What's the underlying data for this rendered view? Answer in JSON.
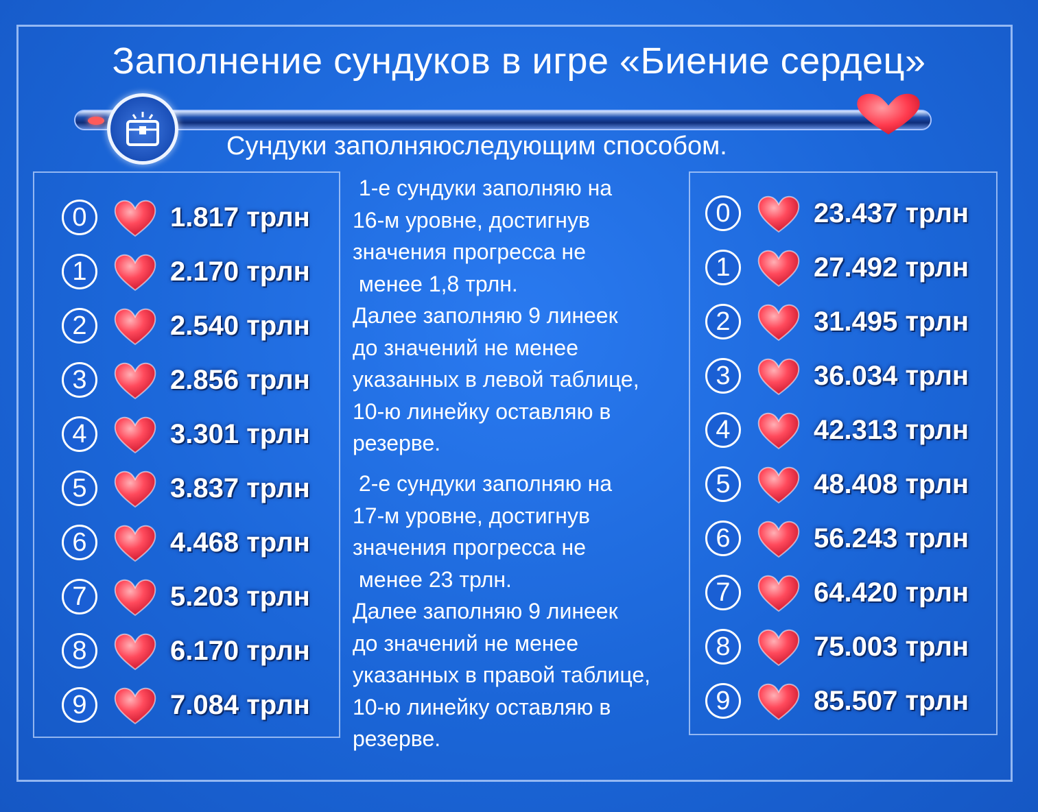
{
  "title": "Заполнение сундуков в игре «Биение сердец»",
  "subtitle": "Сундуки заполняюследующим способом.",
  "left_table": [
    {
      "index": "0",
      "value": "1.817 трлн"
    },
    {
      "index": "1",
      "value": "2.170 трлн"
    },
    {
      "index": "2",
      "value": "2.540 трлн"
    },
    {
      "index": "3",
      "value": "2.856 трлн"
    },
    {
      "index": "4",
      "value": "3.301 трлн"
    },
    {
      "index": "5",
      "value": "3.837 трлн"
    },
    {
      "index": "6",
      "value": "4.468 трлн"
    },
    {
      "index": "7",
      "value": "5.203 трлн"
    },
    {
      "index": "8",
      "value": "6.170 трлн"
    },
    {
      "index": "9",
      "value": "7.084 трлн"
    }
  ],
  "right_table": [
    {
      "index": "0",
      "value": "23.437 трлн"
    },
    {
      "index": "1",
      "value": "27.492 трлн"
    },
    {
      "index": "2",
      "value": "31.495 трлн"
    },
    {
      "index": "3",
      "value": "36.034 трлн"
    },
    {
      "index": "4",
      "value": "42.313 трлн"
    },
    {
      "index": "5",
      "value": "48.408 трлн"
    },
    {
      "index": "6",
      "value": "56.243 трлн"
    },
    {
      "index": "7",
      "value": "64.420 трлн"
    },
    {
      "index": "8",
      "value": "75.003 трлн"
    },
    {
      "index": "9",
      "value": "85.507 трлн"
    }
  ],
  "instructions": {
    "first": " 1-е сундуки заполняю на\n16-м уровне, достигнув\nзначения прогресса не\n менее 1,8 трлн.\nДалее заполняю 9 линеек\nдо значений не менее\nуказанных в левой таблице,\n10-ю линейку оставляю в\nрезерве.",
    "second": " 2-е сундуки заполняю на\n17-м уровне, достигнув\nзначения прогресса не\n менее 23 трлн.\nДалее заполняю 9 линеек\nдо значений не менее\nуказанных в правой таблице,\n10-ю линейку оставляю в\nрезерве."
  },
  "icons": {
    "chest": "chest-icon",
    "heart": "heart-icon"
  },
  "colors": {
    "background": "#1b66d8",
    "heart": "#ff3b4e",
    "text": "#ffffff"
  }
}
